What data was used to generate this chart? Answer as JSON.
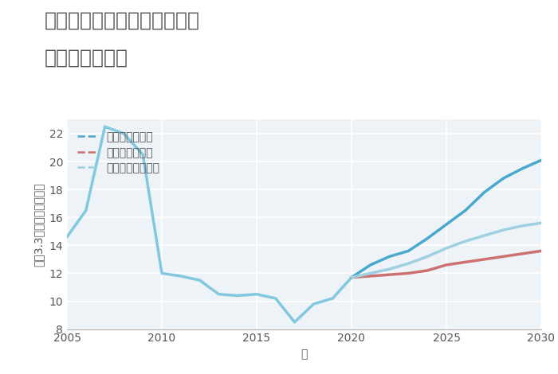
{
  "title_line1": "三重県北牟婁郡紀北町道瀬の",
  "title_line2": "土地の価格推移",
  "xlabel": "年",
  "ylabel": "坪（3.3㎡）単価（万円）",
  "xlim": [
    2005,
    2030
  ],
  "ylim": [
    8,
    23
  ],
  "yticks": [
    8,
    10,
    12,
    14,
    16,
    18,
    20,
    22
  ],
  "xticks": [
    2005,
    2010,
    2015,
    2020,
    2025,
    2030
  ],
  "background_color": "#ffffff",
  "plot_bg_color": "#eef3f8",
  "grid_color": "#ffffff",
  "historical": {
    "years": [
      2005,
      2006,
      2007,
      2008,
      2009,
      2010,
      2011,
      2012,
      2013,
      2014,
      2015,
      2016,
      2017,
      2018,
      2019,
      2020
    ],
    "values": [
      14.6,
      16.5,
      22.5,
      22.0,
      20.5,
      12.0,
      11.8,
      11.5,
      10.5,
      10.4,
      10.5,
      10.2,
      8.5,
      9.8,
      10.2,
      11.7
    ],
    "color": "#82c8de",
    "linewidth": 2.5
  },
  "good": {
    "years": [
      2020,
      2021,
      2022,
      2023,
      2024,
      2025,
      2026,
      2027,
      2028,
      2029,
      2030
    ],
    "values": [
      11.7,
      12.6,
      13.2,
      13.6,
      14.5,
      15.5,
      16.5,
      17.8,
      18.8,
      19.5,
      20.1
    ],
    "color": "#4aa8cc",
    "label": "グッドシナリオ",
    "linewidth": 2.5
  },
  "bad": {
    "years": [
      2020,
      2021,
      2022,
      2023,
      2024,
      2025,
      2026,
      2027,
      2028,
      2029,
      2030
    ],
    "values": [
      11.7,
      11.8,
      11.9,
      12.0,
      12.2,
      12.6,
      12.8,
      13.0,
      13.2,
      13.4,
      13.6
    ],
    "color": "#cc7070",
    "label": "バッドシナリオ",
    "linewidth": 2.5
  },
  "normal": {
    "years": [
      2020,
      2021,
      2022,
      2023,
      2024,
      2025,
      2026,
      2027,
      2028,
      2029,
      2030
    ],
    "values": [
      11.7,
      12.0,
      12.3,
      12.7,
      13.2,
      13.8,
      14.3,
      14.7,
      15.1,
      15.4,
      15.6
    ],
    "color": "#9ed0e0",
    "label": "ノーマルシナリオ",
    "linewidth": 2.5
  },
  "title_color": "#555555",
  "title_fontsize": 18,
  "legend_fontsize": 10,
  "axis_fontsize": 10,
  "tick_fontsize": 10
}
